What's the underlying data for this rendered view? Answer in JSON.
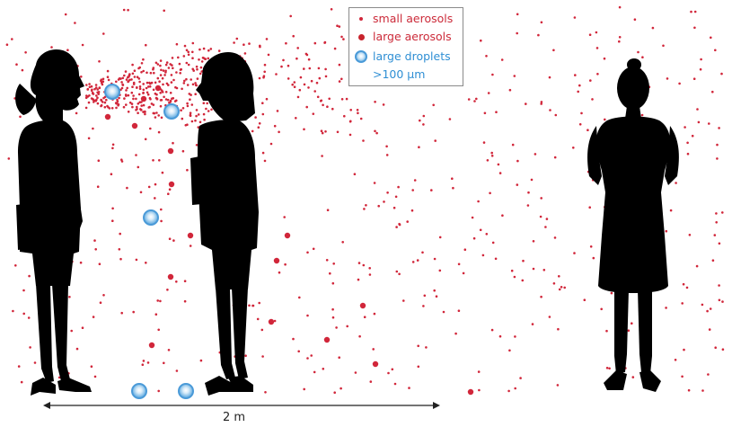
{
  "legend": {
    "items": [
      {
        "label": "small aerosols",
        "marker": "small-dot",
        "color": "#d1263a"
      },
      {
        "label": "large aerosols",
        "marker": "large-dot",
        "color": "#c8232c"
      },
      {
        "label": "large droplets",
        "marker": "droplet",
        "color": "#4a9ad8"
      }
    ],
    "droplet_size_note": ">100 µm"
  },
  "distance": {
    "label": "2 m"
  },
  "colors": {
    "silhouette": "#000000",
    "aerosol": "#d1263a",
    "droplet_border": "#4a9ad8",
    "droplet_text": "#2f8fd4"
  }
}
